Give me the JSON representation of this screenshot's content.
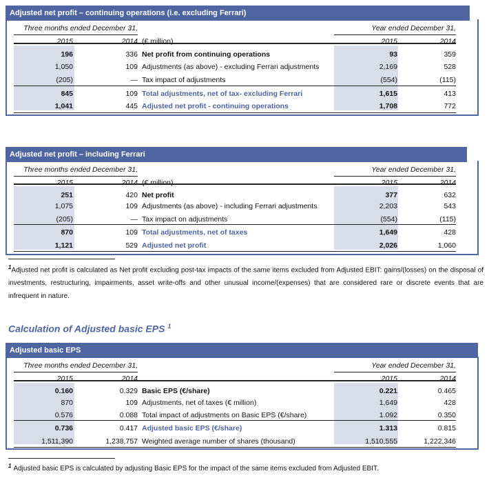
{
  "tables": [
    {
      "title": "Adjusted net profit – continuing operations (i.e. excluding Ferrari)",
      "period_left": "Three months ended December 31,",
      "period_right": "Year ended December 31,",
      "years": [
        "2015",
        "2014",
        "2015",
        "2014"
      ],
      "unit": "(€ million)",
      "rows": [
        {
          "q2015": "196",
          "q2014": "336",
          "label": "Net profit from continuing operations",
          "y2015": "93",
          "y2014": "359"
        },
        {
          "q2015": "1,050",
          "q2014": "109",
          "label": "Adjustments (as above) - excluding Ferrari adjustments",
          "y2015": "2,169",
          "y2014": "528"
        },
        {
          "q2015": "(205)",
          "q2014": "—",
          "label": "Tax impact of adjustments",
          "y2015": "(554)",
          "y2014": "(115)"
        },
        {
          "q2015": "845",
          "q2014": "109",
          "label": "Total adjustments, net of tax- excluding Ferrari",
          "y2015": "1,615",
          "y2014": "413"
        },
        {
          "q2015": "1,041",
          "q2014": "445",
          "label": "Adjusted net profit - continuing operations",
          "y2015": "1,708",
          "y2014": "772"
        }
      ]
    },
    {
      "title": "Adjusted net profit – including Ferrari",
      "period_left": "Three months ended December 31,",
      "period_right": "Year ended December 31,",
      "years": [
        "2015",
        "2014",
        "2015",
        "2014"
      ],
      "unit": "(€ million)",
      "rows": [
        {
          "q2015": "251",
          "q2014": "420",
          "label": "Net profit",
          "y2015": "377",
          "y2014": "632"
        },
        {
          "q2015": "1,075",
          "q2014": "109",
          "label": "Adjustments (as above) - including Ferrari adjustments",
          "y2015": "2,203",
          "y2014": "543"
        },
        {
          "q2015": "(205)",
          "q2014": "—",
          "label": "Tax impact on adjustments",
          "y2015": "(554)",
          "y2014": "(115)"
        },
        {
          "q2015": "870",
          "q2014": "109",
          "label": "Total adjustments, net of taxes",
          "y2015": "1,649",
          "y2014": "428"
        },
        {
          "q2015": "1,121",
          "q2014": "529",
          "label": "Adjusted net profit",
          "y2015": "2,026",
          "y2014": "1,060"
        }
      ]
    },
    {
      "title": "Adjusted basic EPS",
      "period_left": "Three months ended December 31,",
      "period_right": "Year ended December 31,",
      "years": [
        "2015",
        "2014",
        "2015",
        "2014"
      ],
      "unit": "",
      "rows": [
        {
          "q2015": "0.160",
          "q2014": "0.329",
          "label": "Basic EPS (€/share)",
          "y2015": "0.221",
          "y2014": "0.465"
        },
        {
          "q2015": "870",
          "q2014": "109",
          "label": "Adjustments, net of taxes (€ million)",
          "y2015": "1,649",
          "y2014": "428"
        },
        {
          "q2015": "0.576",
          "q2014": "0.088",
          "label": "Total impact of adjustments on Basic EPS (€/share)",
          "y2015": "1.092",
          "y2014": "0.350"
        },
        {
          "q2015": "0.736",
          "q2014": "0.417",
          "label": "Adjusted basic EPS (€/share)",
          "y2015": "1.313",
          "y2014": "0.815"
        },
        {
          "q2015": "1,511,390",
          "q2014": "1,238,757",
          "label": "Weighted average number of shares (thousand)",
          "y2015": "1,510,555",
          "y2014": "1,222,346"
        }
      ]
    }
  ],
  "footnote1": {
    "mark": "1",
    "text": "Adjusted net profit is calculated as Net profit excluding post-tax impacts of the same items excluded from Adjusted EBIT: gains/(losses) on the disposal of investments, restructuring, impairments, asset write-offs and other unusual income/(expenses) that are considered rare or discrete events that are infrequent in nature."
  },
  "section_title": {
    "text": "Calculation of Adjusted basic EPS",
    "mark": "1"
  },
  "footnote2": {
    "mark": "1",
    "text": "Adjusted basic EPS is calculated by adjusting Basic EPS for the impact of the same items excluded from Adjusted EBIT."
  }
}
